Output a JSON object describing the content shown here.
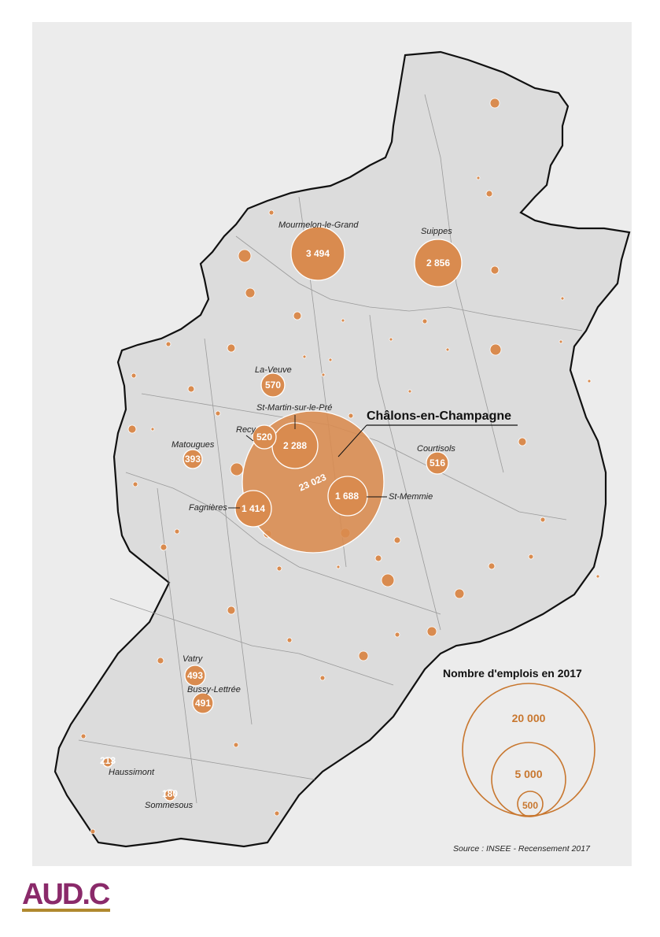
{
  "map": {
    "title": "Châlons-en-Champagne",
    "source": "Source : INSEE - Recensement 2017",
    "colors": {
      "bubble": "#d98b4f",
      "territory": "#dcdcdc",
      "background": "#ececec",
      "border": "#111111",
      "legend": "#c8772f"
    },
    "legend": {
      "title": "Nombre d'emplois en 2017",
      "items": [
        {
          "label": "20 000"
        },
        {
          "label": "5 000"
        },
        {
          "label": "500"
        }
      ]
    },
    "communes": [
      {
        "name": "Châlons-en-Champagne",
        "value": "23 023"
      },
      {
        "name": "Mourmelon-le-Grand",
        "value": "3 494"
      },
      {
        "name": "Suippes",
        "value": "2 856"
      },
      {
        "name": "St-Martin-sur-le-Pré",
        "value": "2 288"
      },
      {
        "name": "St-Memmie",
        "value": "1 688"
      },
      {
        "name": "Fagnières",
        "value": "1 414"
      },
      {
        "name": "La-Veuve",
        "value": "570"
      },
      {
        "name": "Recy",
        "value": "520"
      },
      {
        "name": "Courtisols",
        "value": "516"
      },
      {
        "name": "Vatry",
        "value": "493"
      },
      {
        "name": "Bussy-Lettrée",
        "value": "491"
      },
      {
        "name": "Matougues",
        "value": "393"
      },
      {
        "name": "Haussimont",
        "value": "213"
      },
      {
        "name": "Sommesous",
        "value": "180"
      }
    ]
  },
  "logo": {
    "text": "AUD.C"
  }
}
